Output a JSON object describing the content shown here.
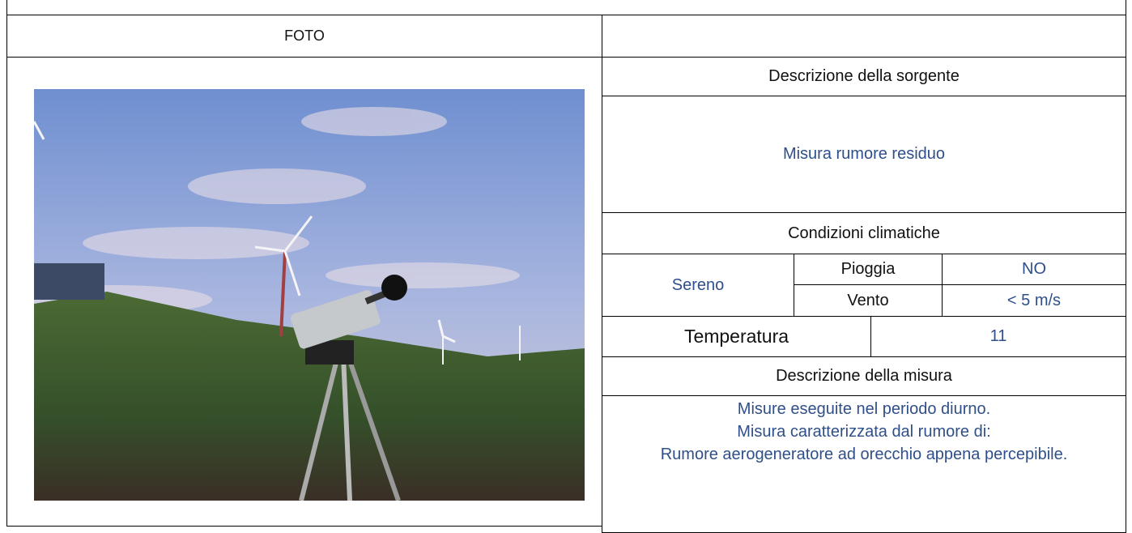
{
  "photo_header": "FOTO",
  "source": {
    "heading": "Descrizione della sorgente",
    "text": "Misura rumore residuo"
  },
  "climate": {
    "heading": "Condizioni climatiche",
    "sky": "Sereno",
    "rows": [
      {
        "label": "Pioggia",
        "value": "NO"
      },
      {
        "label": "Vento",
        "value": "< 5 m/s"
      }
    ],
    "temperature_label": "Temperatura",
    "temperature_value": "11"
  },
  "measurement": {
    "heading": "Descrizione della misura",
    "lines": [
      "Misure eseguite nel periodo diurno.",
      "Misura caratterizzata dal rumore di:",
      "Rumore aerogeneratore ad orecchio appena percepibile."
    ]
  }
}
